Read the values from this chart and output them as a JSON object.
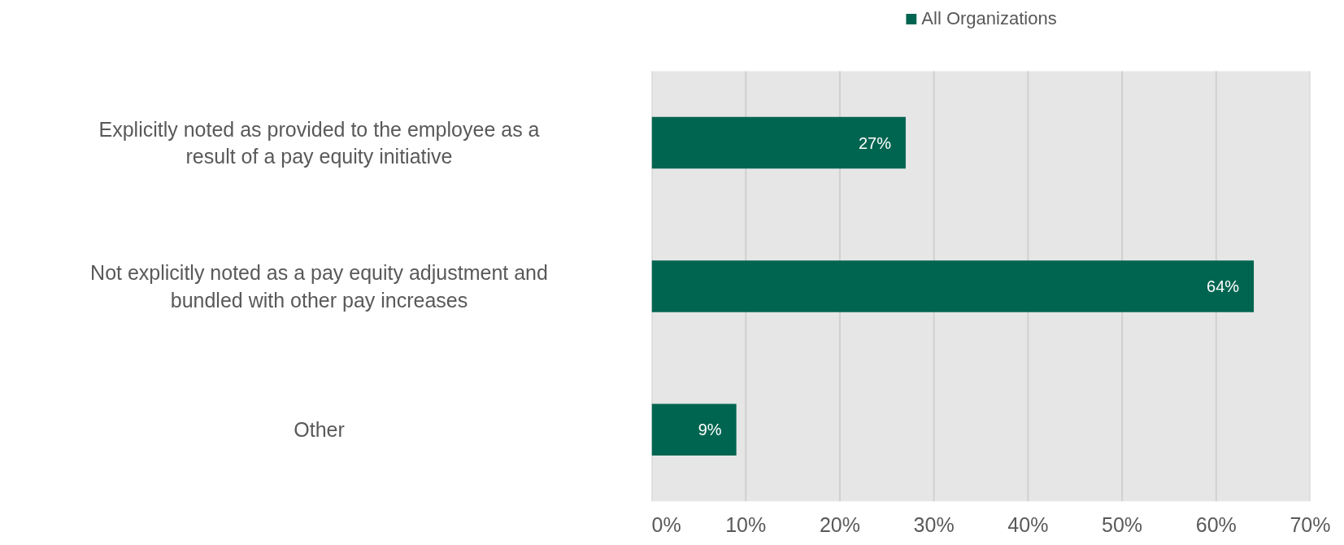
{
  "chart_data": {
    "type": "bar",
    "orientation": "horizontal",
    "categories": [
      "Explicitly noted as provided to the employee as a result of a pay equity initiative",
      "Not explicitly noted as a pay equity adjustment and bundled with other pay increases",
      "Other"
    ],
    "series": [
      {
        "name": "All Organizations",
        "color": "#006550",
        "values": [
          27,
          64,
          9
        ],
        "value_labels": [
          "27%",
          "64%",
          "9%"
        ]
      }
    ],
    "xlim": [
      0,
      70
    ],
    "xticks": [
      {
        "value": 0,
        "label": "0%"
      },
      {
        "value": 10,
        "label": "10%"
      },
      {
        "value": 20,
        "label": "20%"
      },
      {
        "value": 30,
        "label": "30%"
      },
      {
        "value": 40,
        "label": "40%"
      },
      {
        "value": 50,
        "label": "50%"
      },
      {
        "value": 60,
        "label": "60%"
      },
      {
        "value": 70,
        "label": "70%"
      }
    ],
    "data_labels": true,
    "grid": "x",
    "legend": "top"
  }
}
